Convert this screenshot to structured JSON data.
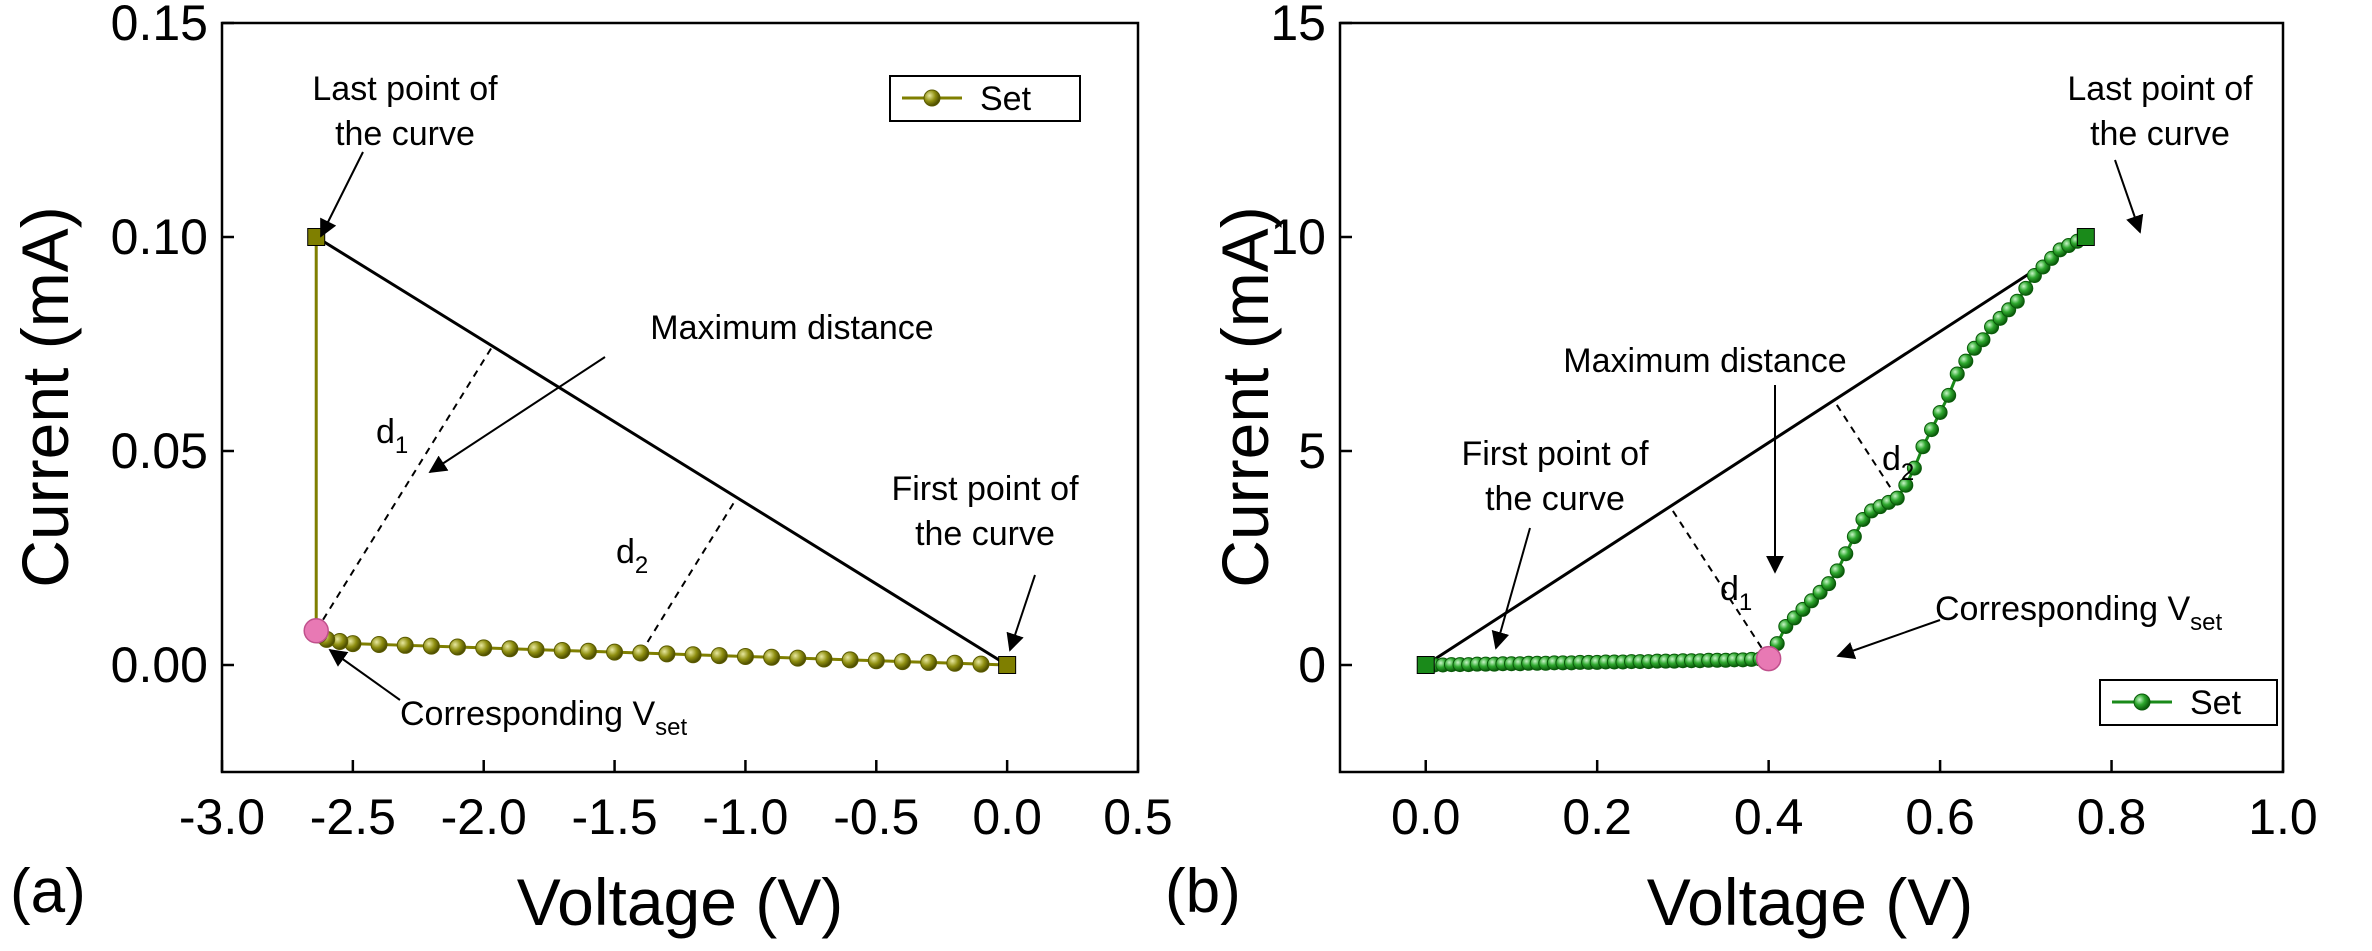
{
  "chart_data": [
    {
      "type": "line",
      "panel_label": "(a)",
      "title": "",
      "xlabel": "Voltage (V)",
      "ylabel": "Current (mA)",
      "xlim": [
        -3.0,
        0.5
      ],
      "ylim": [
        -0.025,
        0.15
      ],
      "xticks": [
        -3.0,
        -2.5,
        -2.0,
        -1.5,
        -1.0,
        -0.5,
        0.0,
        0.5
      ],
      "xtick_labels": [
        "-3.0",
        "-2.5",
        "-2.0",
        "-1.5",
        "-1.0",
        "-0.5",
        "0.0",
        "0.5"
      ],
      "yticks": [
        0.0,
        0.05,
        0.1,
        0.15
      ],
      "ytick_labels": [
        "0.00",
        "0.05",
        "0.10",
        "0.15"
      ],
      "legend": {
        "entries": [
          "Set"
        ],
        "position": "top-right"
      },
      "series": [
        {
          "name": "Set",
          "color": "#7f7f00",
          "marker": "circle",
          "x": [
            0.0,
            -0.1,
            -0.2,
            -0.3,
            -0.4,
            -0.5,
            -0.6,
            -0.7,
            -0.8,
            -0.9,
            -1.0,
            -1.1,
            -1.2,
            -1.3,
            -1.4,
            -1.5,
            -1.6,
            -1.7,
            -1.8,
            -1.9,
            -2.0,
            -2.1,
            -2.2,
            -2.3,
            -2.4,
            -2.5,
            -2.55,
            -2.6,
            -2.63,
            -2.64,
            -2.64
          ],
          "y": [
            0.0,
            0.0002,
            0.0004,
            0.0006,
            0.0008,
            0.001,
            0.0012,
            0.0014,
            0.0016,
            0.0018,
            0.002,
            0.0022,
            0.0024,
            0.0026,
            0.0028,
            0.003,
            0.0032,
            0.0034,
            0.0036,
            0.0038,
            0.004,
            0.0042,
            0.0044,
            0.0046,
            0.0048,
            0.005,
            0.0055,
            0.006,
            0.007,
            0.008,
            0.1
          ]
        }
      ],
      "line_endpoints": {
        "first": [
          0.0,
          0.0
        ],
        "last": [
          -2.64,
          0.1
        ]
      },
      "vset_point": [
        -2.64,
        0.008
      ],
      "annotations": {
        "last_point": [
          "Last point of",
          "the curve"
        ],
        "first_point": [
          "First point of",
          "the curve"
        ],
        "max_distance": "Maximum distance",
        "d1_main": "d",
        "d1_sub": "1",
        "d2_main": "d",
        "d2_sub": "2",
        "vset_main": "Corresponding V",
        "vset_sub": "set"
      }
    },
    {
      "type": "line",
      "panel_label": "(b)",
      "title": "",
      "xlabel": "Voltage (V)",
      "ylabel": "Current (mA)",
      "xlim": [
        -0.1,
        1.0
      ],
      "ylim": [
        -2.5,
        15
      ],
      "xticks": [
        0.0,
        0.2,
        0.4,
        0.6,
        0.8,
        1.0
      ],
      "xtick_labels": [
        "0.0",
        "0.2",
        "0.4",
        "0.6",
        "0.8",
        "1.0"
      ],
      "yticks": [
        0,
        5,
        10,
        15
      ],
      "ytick_labels": [
        "0",
        "5",
        "10",
        "15"
      ],
      "legend": {
        "entries": [
          "Set"
        ],
        "position": "bottom-right"
      },
      "series": [
        {
          "name": "Set",
          "color": "#1a8a1a",
          "marker": "circle",
          "x": [
            0.0,
            0.01,
            0.02,
            0.03,
            0.04,
            0.05,
            0.06,
            0.07,
            0.08,
            0.09,
            0.1,
            0.11,
            0.12,
            0.13,
            0.14,
            0.15,
            0.16,
            0.17,
            0.18,
            0.19,
            0.2,
            0.21,
            0.22,
            0.23,
            0.24,
            0.25,
            0.26,
            0.27,
            0.28,
            0.29,
            0.3,
            0.31,
            0.32,
            0.33,
            0.34,
            0.35,
            0.36,
            0.37,
            0.38,
            0.39,
            0.4,
            0.41,
            0.42,
            0.43,
            0.44,
            0.45,
            0.46,
            0.47,
            0.48,
            0.49,
            0.5,
            0.51,
            0.52,
            0.53,
            0.54,
            0.55,
            0.56,
            0.57,
            0.58,
            0.59,
            0.6,
            0.61,
            0.62,
            0.63,
            0.64,
            0.65,
            0.66,
            0.67,
            0.68,
            0.69,
            0.7,
            0.71,
            0.72,
            0.73,
            0.74,
            0.75,
            0.76,
            0.77
          ],
          "y": [
            0.0,
            0.0,
            0.0,
            0.01,
            0.01,
            0.01,
            0.02,
            0.02,
            0.02,
            0.03,
            0.03,
            0.03,
            0.04,
            0.04,
            0.04,
            0.05,
            0.05,
            0.05,
            0.06,
            0.06,
            0.06,
            0.07,
            0.07,
            0.07,
            0.08,
            0.08,
            0.08,
            0.09,
            0.09,
            0.09,
            0.1,
            0.1,
            0.1,
            0.11,
            0.11,
            0.11,
            0.12,
            0.12,
            0.13,
            0.14,
            0.15,
            0.5,
            0.9,
            1.1,
            1.3,
            1.5,
            1.7,
            1.9,
            2.2,
            2.6,
            3.0,
            3.4,
            3.6,
            3.7,
            3.8,
            3.9,
            4.2,
            4.6,
            5.1,
            5.5,
            5.9,
            6.3,
            6.8,
            7.1,
            7.4,
            7.6,
            7.9,
            8.1,
            8.3,
            8.5,
            8.8,
            9.1,
            9.3,
            9.5,
            9.7,
            9.8,
            9.9,
            10.0
          ]
        }
      ],
      "line_endpoints": {
        "first": [
          0.0,
          0.0
        ],
        "last": [
          0.77,
          10.0
        ]
      },
      "vset_point": [
        0.4,
        0.15
      ],
      "annotations": {
        "last_point": [
          "Last point of",
          "the curve"
        ],
        "first_point": [
          "First point of",
          "the curve"
        ],
        "max_distance": "Maximum distance",
        "d1_main": "d",
        "d1_sub": "1",
        "d2_main": "d",
        "d2_sub": "2",
        "vset_main": "Corresponding V",
        "vset_sub": "set"
      }
    }
  ],
  "colors": {
    "vset_marker": "#e879b4",
    "line": "#000000",
    "frame": "#000000"
  }
}
